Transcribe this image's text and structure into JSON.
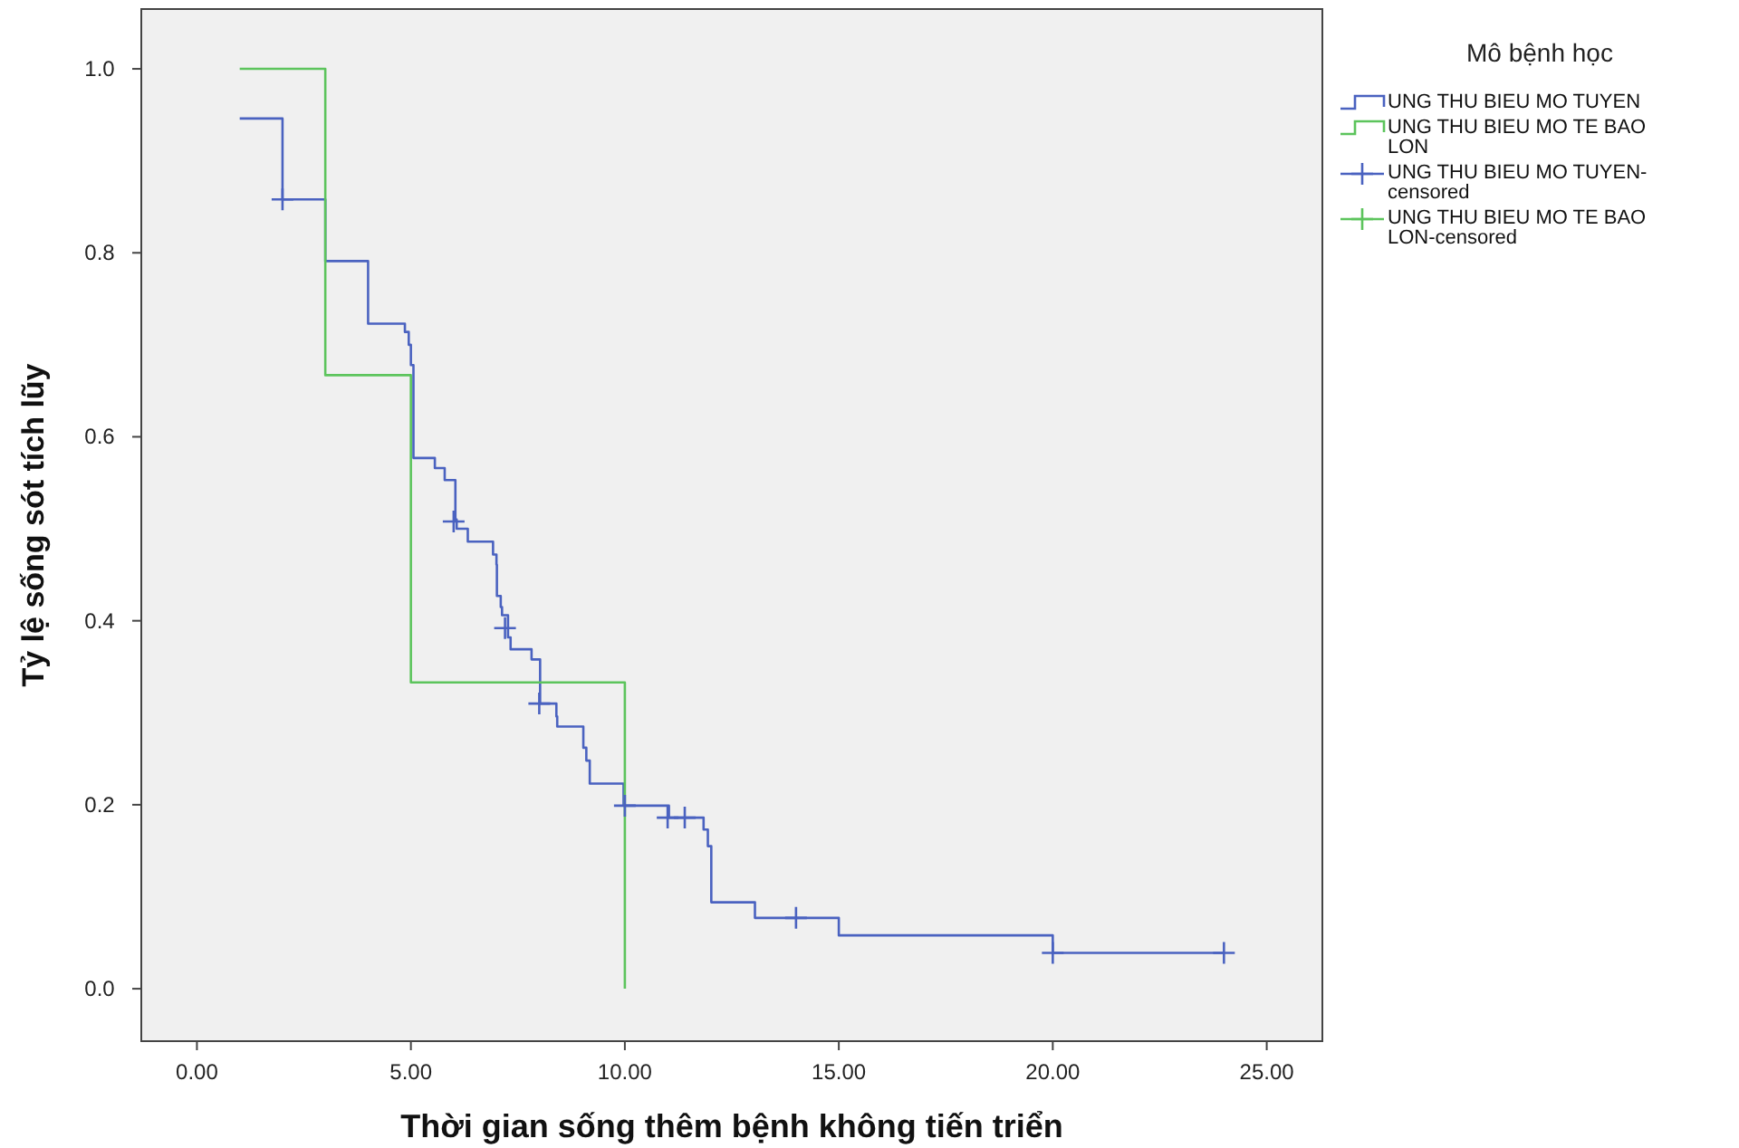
{
  "chart_data": {
    "type": "step",
    "xlabel": "Thời gian sống thêm bệnh không tiến triển",
    "ylabel": "Tỷ lệ sống sót tích lũy",
    "legend_title": "Mô bệnh học",
    "legend": "right",
    "grid": false,
    "xlim": [
      -1.3,
      26.3
    ],
    "ylim": [
      -0.057,
      1.065
    ],
    "xticks": [
      {
        "value": 0,
        "label": "0.00"
      },
      {
        "value": 5,
        "label": "5.00"
      },
      {
        "value": 10,
        "label": "10.00"
      },
      {
        "value": 15,
        "label": "15.00"
      },
      {
        "value": 20,
        "label": "20.00"
      },
      {
        "value": 25,
        "label": "25.00"
      }
    ],
    "yticks": [
      {
        "value": 0,
        "label": "0.0"
      },
      {
        "value": 0.2,
        "label": "0.2"
      },
      {
        "value": 0.4,
        "label": "0.4"
      },
      {
        "value": 0.6,
        "label": "0.6"
      },
      {
        "value": 0.8,
        "label": "0.8"
      },
      {
        "value": 1,
        "label": "1.0"
      }
    ],
    "series": [
      {
        "name": "UNG THU BIEU MO TUYEN",
        "color": "#4a62c0",
        "x": [
          1,
          2,
          3,
          4,
          4.86,
          4.95,
          5,
          5.06,
          5.56,
          5.79,
          6.04,
          6.07,
          6.33,
          6.92,
          7,
          7.01,
          7.1,
          7.13,
          7.27,
          7.33,
          7.82,
          8.02,
          8.4,
          8.42,
          9.03,
          9.1,
          9.18,
          9.97,
          11.03,
          11.84,
          11.94,
          12.02,
          13.04,
          15,
          20,
          24
        ],
        "values": [
          0.946,
          0.858,
          0.791,
          0.723,
          0.714,
          0.7,
          0.678,
          0.577,
          0.566,
          0.553,
          0.51,
          0.5,
          0.486,
          0.472,
          0.461,
          0.427,
          0.415,
          0.406,
          0.382,
          0.369,
          0.358,
          0.31,
          0.296,
          0.285,
          0.262,
          0.248,
          0.223,
          0.199,
          0.186,
          0.173,
          0.155,
          0.094,
          0.077,
          0.058,
          0.039,
          0.039
        ]
      },
      {
        "name": "UNG THU BIEU MO TE BAO LON",
        "color": "#5cc45c",
        "x": [
          1,
          3,
          5,
          10
        ],
        "values": [
          1,
          0.667,
          0.333,
          0
        ]
      },
      {
        "name": "UNG THU BIEU MO TUYEN-censored",
        "type": "scatter",
        "marker": "cross",
        "color": "#4a62c0",
        "x": [
          2,
          6,
          7.2,
          8,
          10,
          11,
          11.4,
          14,
          20,
          24
        ],
        "values": [
          0.858,
          0.508,
          0.392,
          0.31,
          0.199,
          0.186,
          0.186,
          0.077,
          0.039,
          0.039
        ]
      },
      {
        "name": "UNG THU BIEU MO TE BAO LON-censored",
        "type": "scatter",
        "marker": "cross",
        "color": "#5cc45c"
      }
    ]
  }
}
